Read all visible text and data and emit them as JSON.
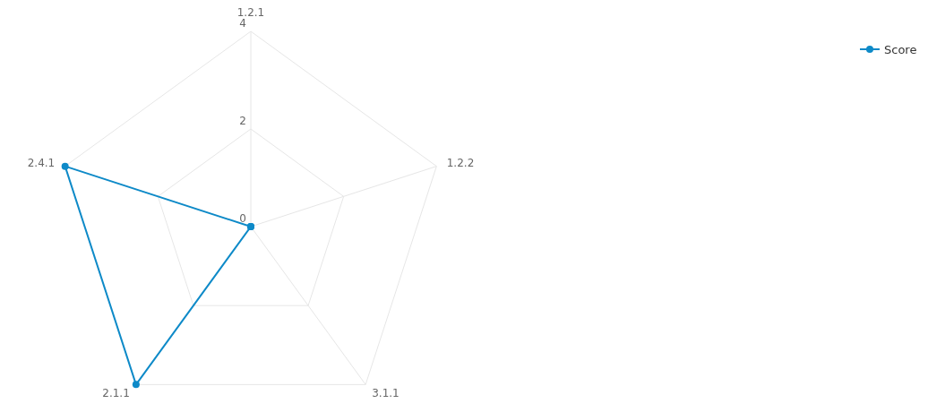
{
  "chart_data": {
    "type": "radar",
    "categories": [
      "1.2.1",
      "1.2.2",
      "3.1.1",
      "2.1.1",
      "2.4.1"
    ],
    "series": [
      {
        "name": "Score",
        "color": "#0e8ac8",
        "values": [
          0,
          0,
          0,
          4,
          4
        ]
      }
    ],
    "ylim": [
      0,
      4
    ],
    "yticks": [
      0,
      2,
      4
    ],
    "legend": "top right",
    "marker": "circle",
    "grid": true
  }
}
